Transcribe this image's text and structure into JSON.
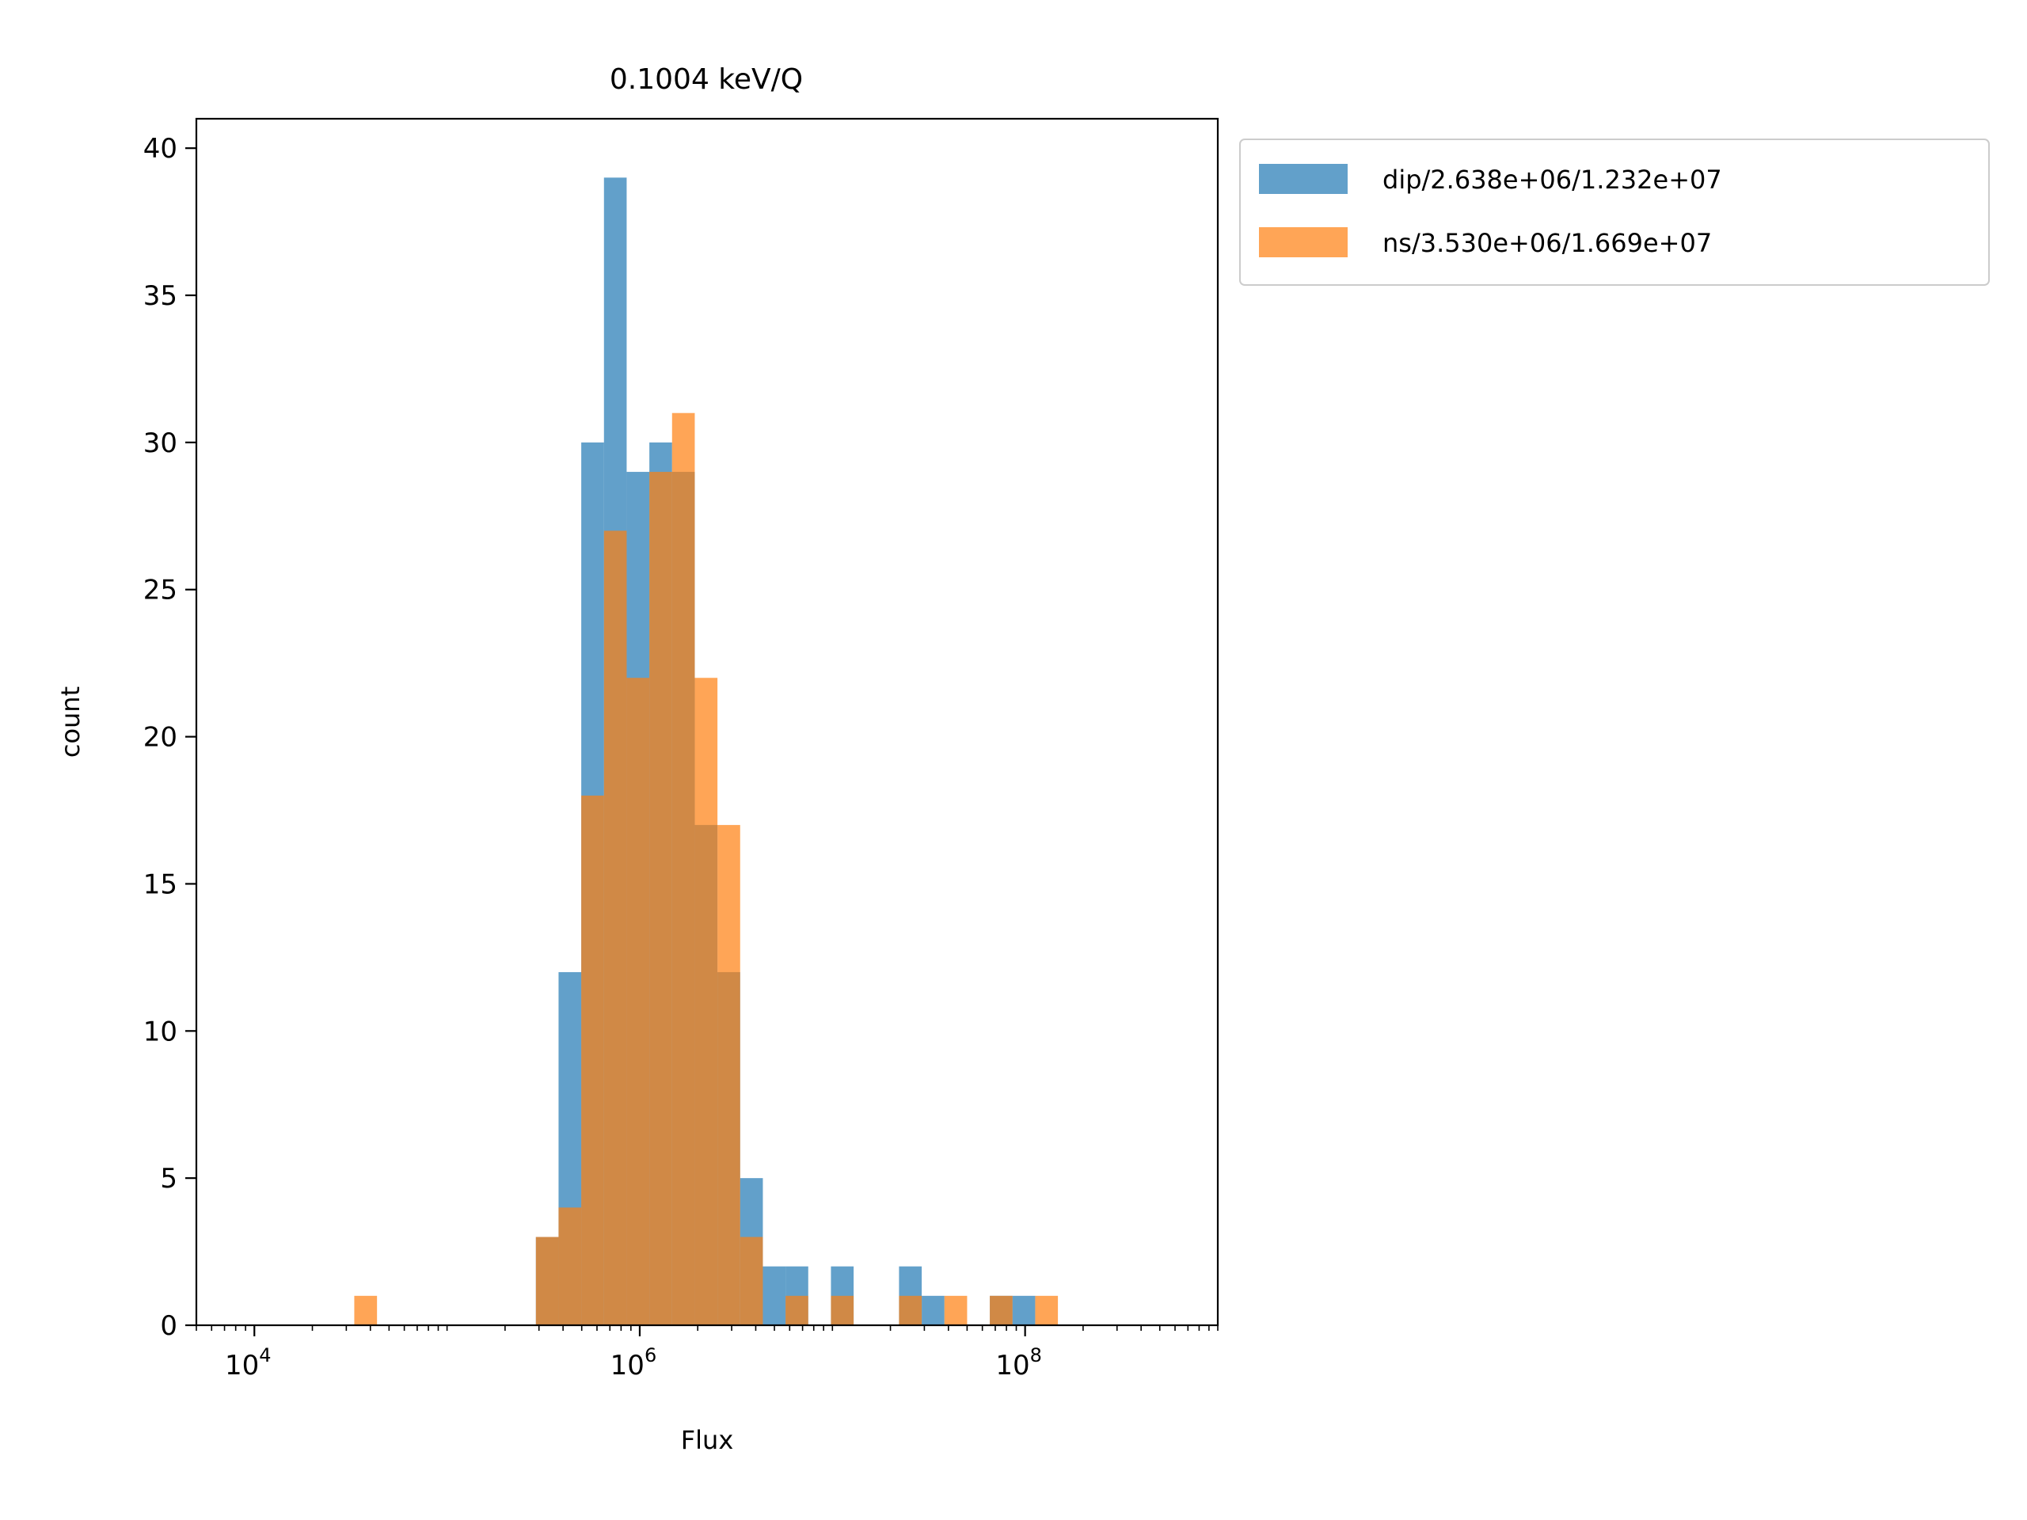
{
  "chart_data": {
    "type": "bar",
    "title": "0.1004 keV/Q",
    "xlabel": "Flux",
    "ylabel": "count",
    "x_scale": "log",
    "xlim": [
      5000,
      1000000000
    ],
    "ylim": [
      0,
      41
    ],
    "x_ticks": [
      {
        "value": 10000,
        "base": "10",
        "exp": "4"
      },
      {
        "value": 1000000,
        "base": "10",
        "exp": "6"
      },
      {
        "value": 100000000,
        "base": "10",
        "exp": "8"
      }
    ],
    "y_ticks": [
      0,
      5,
      10,
      15,
      20,
      25,
      30,
      35,
      40
    ],
    "grid": false,
    "legend_position": "outside-upper-right",
    "series": [
      {
        "name": "dip/2.638e+06/1.232e+07",
        "color": "#1f77b4",
        "alpha": 0.7,
        "bin_edges": [
          33000,
          43300,
          56800,
          74500,
          97700,
          128100,
          168000,
          220400,
          289100,
          379100,
          497200,
          652200,
          855400,
          1122000,
          1471500,
          1930000,
          2531500,
          3320200,
          4354700,
          5711600,
          7491200,
          9825200,
          12886500,
          16901500,
          22167700,
          29074700,
          38133600,
          50015200,
          65598800,
          86037900,
          112845200,
          148005400,
          194120700
        ],
        "counts": [
          0,
          0,
          0,
          0,
          0,
          0,
          0,
          0,
          3,
          12,
          30,
          39,
          29,
          30,
          29,
          17,
          12,
          5,
          2,
          2,
          0,
          2,
          0,
          0,
          2,
          1,
          0,
          0,
          1,
          1,
          0,
          0
        ]
      },
      {
        "name": "ns/3.530e+06/1.669e+07",
        "color": "#ff7f0e",
        "alpha": 0.7,
        "bin_edges": [
          33000,
          43300,
          56800,
          74500,
          97700,
          128100,
          168000,
          220400,
          289100,
          379100,
          497200,
          652200,
          855400,
          1122000,
          1471500,
          1930000,
          2531500,
          3320200,
          4354700,
          5711600,
          7491200,
          9825200,
          12886500,
          16901500,
          22167700,
          29074700,
          38133600,
          50015200,
          65598800,
          86037900,
          112845200,
          148005400,
          194120700
        ],
        "counts": [
          1,
          0,
          0,
          0,
          0,
          0,
          0,
          0,
          3,
          4,
          18,
          27,
          22,
          29,
          31,
          22,
          17,
          3,
          0,
          1,
          0,
          1,
          0,
          0,
          1,
          0,
          1,
          0,
          1,
          0,
          1,
          0
        ]
      }
    ]
  }
}
